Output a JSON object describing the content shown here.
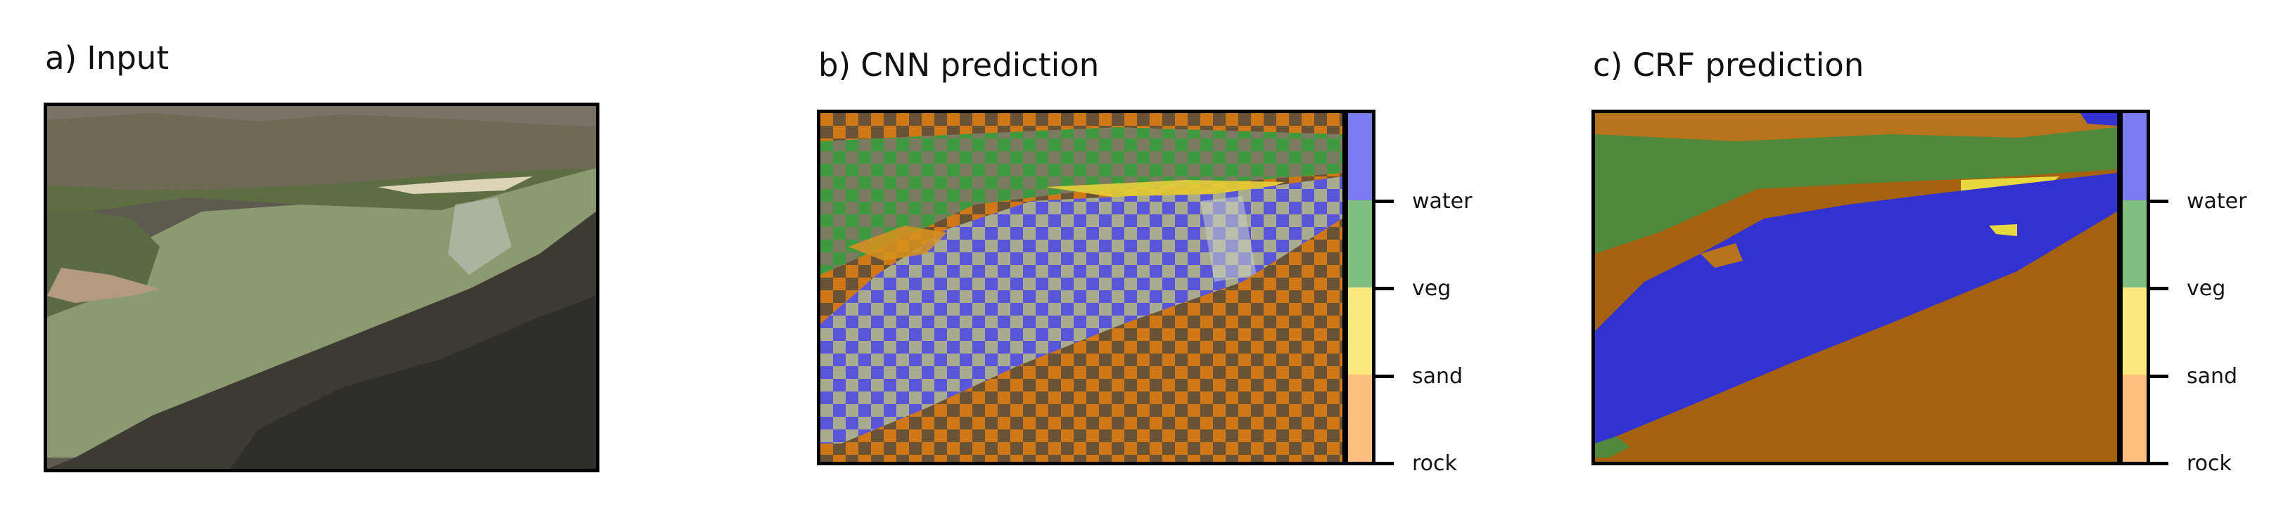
{
  "panels": {
    "input": {
      "title": "a) Input"
    },
    "cnn": {
      "title": "b) CNN prediction"
    },
    "crf": {
      "title": "c) CRF prediction"
    }
  },
  "colorbar": {
    "labels": [
      "water",
      "veg",
      "sand",
      "rock"
    ],
    "colors": {
      "water": "#7b7bf2",
      "veg": "#7fbf7f",
      "sand": "#fbe97e",
      "rock": "#fdbf80"
    }
  },
  "overlay_colors": {
    "water": "#4a4ad8",
    "veg": "#3f9a3f",
    "sand": "#f2dd50",
    "rock": "#c9751e"
  }
}
